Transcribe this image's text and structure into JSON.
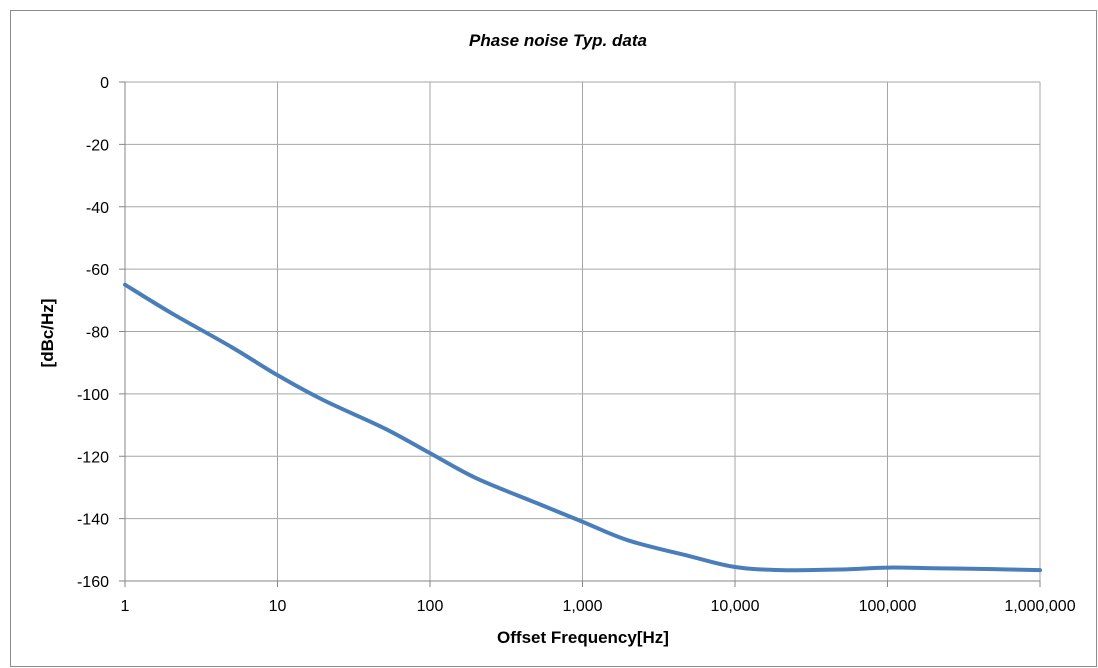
{
  "chart_data": {
    "type": "line",
    "title": "Phase noise Typ. data",
    "xlabel": "Offset Frequency[Hz]",
    "ylabel": "[dBc/Hz]",
    "x_scale": "log",
    "xlim": [
      1,
      1000000
    ],
    "ylim": [
      -160,
      0
    ],
    "x_ticks": [
      1,
      10,
      100,
      1000,
      10000,
      100000,
      1000000
    ],
    "x_tick_labels": [
      "1",
      "10",
      "100",
      "1,000",
      "10,000",
      "100,000",
      "1,000,000"
    ],
    "y_ticks": [
      0,
      -20,
      -40,
      -60,
      -80,
      -100,
      -120,
      -140,
      -160
    ],
    "y_tick_labels": [
      "0",
      "-20",
      "-40",
      "-60",
      "-80",
      "-100",
      "-120",
      "-140",
      "-160"
    ],
    "grid": true,
    "legend": "none",
    "series": [
      {
        "color": "#4a7ebb",
        "x": [
          1,
          2,
          5,
          10,
          20,
          50,
          100,
          200,
          500,
          1000,
          2000,
          5000,
          10000,
          20000,
          50000,
          100000,
          200000,
          500000,
          1000000
        ],
        "y": [
          -65,
          -74,
          -85,
          -94,
          -102,
          -111,
          -119,
          -127,
          -135,
          -141,
          -147,
          -152,
          -155.5,
          -156.5,
          -156.3,
          -155.7,
          -155.9,
          -156.2,
          -156.5
        ]
      }
    ]
  }
}
